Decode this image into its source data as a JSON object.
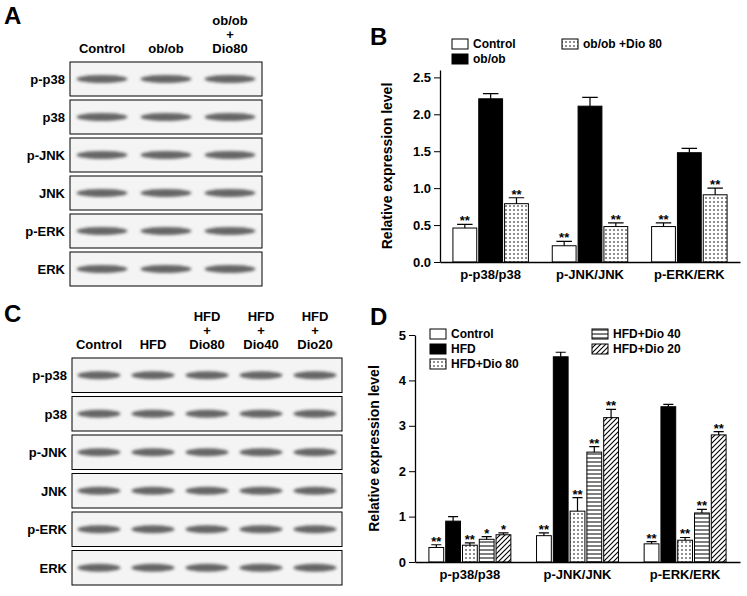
{
  "chart_data": [
    {
      "type": "bar",
      "title": "B",
      "y_label": "Relative expression level",
      "categories": [
        "p-p38/p38",
        "p-JNK/JNK",
        "p-ERK/ERK"
      ],
      "ylim": [
        0,
        2.6
      ],
      "yticks": [
        {
          "value": 0,
          "label": "0.0"
        },
        0.5,
        {
          "value": 1,
          "label": "1.0"
        },
        1.5,
        {
          "value": 2,
          "label": "2.0"
        },
        2.5
      ],
      "series": [
        {
          "name": "Control",
          "color": "#ffffff",
          "values": [
            0.46,
            0.22,
            0.48
          ],
          "errors": [
            0.05,
            0.06,
            0.05
          ],
          "significance": [
            "**",
            "**",
            "**"
          ]
        },
        {
          "name": "ob/ob",
          "color": "#000000",
          "values": [
            2.21,
            2.11,
            1.48
          ],
          "errors": [
            0.07,
            0.12,
            0.06
          ]
        },
        {
          "name": "ob/ob +Dio 80",
          "color": "#ffffff",
          "values": [
            0.79,
            0.48,
            0.91
          ],
          "errors": [
            0.08,
            0.05,
            0.09
          ],
          "significance": [
            "**",
            "**",
            "**"
          ]
        }
      ]
    },
    {
      "type": "bar",
      "title": "D",
      "y_label": "Relative expression level",
      "categories": [
        "p-p38/p38",
        "p-JNK/JNK",
        "p-ERK/ERK"
      ],
      "ylim": [
        0,
        5
      ],
      "yticks": [
        0,
        1,
        2,
        3,
        4,
        5
      ],
      "series": [
        {
          "name": "Control",
          "color": "#ffffff",
          "values": [
            0.32,
            0.58,
            0.4
          ],
          "errors": [
            0.06,
            0.06,
            0.05
          ],
          "significance": [
            "**",
            "**",
            "**"
          ]
        },
        {
          "name": "HFD",
          "color": "#000000",
          "values": [
            0.9,
            4.52,
            3.42
          ],
          "errors": [
            0.1,
            0.1,
            0.05
          ]
        },
        {
          "name": "HFD+Dio 80",
          "color": "#ffffff",
          "values": [
            0.37,
            1.12,
            0.48
          ],
          "errors": [
            0.05,
            0.3,
            0.06
          ],
          "significance": [
            "**",
            "**",
            "**"
          ]
        },
        {
          "name": "HFD+Dio 40",
          "color": "#ffffff",
          "values": [
            0.5,
            2.42,
            1.08
          ],
          "errors": [
            0.06,
            0.12,
            0.08
          ],
          "significance": [
            "*",
            "**",
            "**"
          ]
        },
        {
          "name": "HFD+Dio 20",
          "color": "#ffffff",
          "values": [
            0.6,
            3.18,
            2.8
          ],
          "errors": [
            0.04,
            0.18,
            0.07
          ],
          "significance": [
            "*",
            "**",
            "**"
          ]
        }
      ]
    }
  ],
  "blots": [
    {
      "title": "A",
      "lanes": [
        [
          "Control"
        ],
        [
          "ob/ob"
        ],
        [
          "ob/ob",
          "+",
          "Dio80"
        ]
      ],
      "rows": [
        "p-p38",
        "p38",
        "p-JNK",
        "JNK",
        "p-ERK",
        "ERK"
      ]
    },
    {
      "title": "C",
      "lanes": [
        [
          "Control"
        ],
        [
          "HFD"
        ],
        [
          "HFD",
          "+",
          "Dio80"
        ],
        [
          "HFD",
          "+",
          "Dio40"
        ],
        [
          "HFD",
          "+",
          "Dio20"
        ]
      ],
      "rows": [
        "p-p38",
        "p38",
        "p-JNK",
        "JNK",
        "p-ERK",
        "ERK"
      ]
    }
  ]
}
